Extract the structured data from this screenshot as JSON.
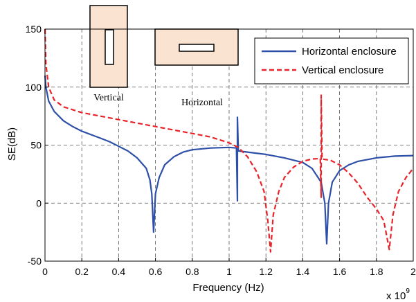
{
  "chart_data": {
    "type": "line",
    "title": "",
    "xlabel": "Frequency (Hz)",
    "ylabel": "SE(dB)",
    "x_multiplier_label": "x 10",
    "x_multiplier_exponent": "9",
    "xlim": [
      0,
      2
    ],
    "ylim": [
      -50,
      150
    ],
    "xticks": [
      0,
      0.2,
      0.4,
      0.6,
      0.8,
      1,
      1.2,
      1.4,
      1.6,
      1.8,
      2
    ],
    "xtick_labels": [
      "0",
      "0.2",
      "0.4",
      "0.6",
      "0.8",
      "1",
      "1.2",
      "1.4",
      "1.6",
      "1.8",
      "2"
    ],
    "yticks": [
      -50,
      0,
      50,
      100,
      150
    ],
    "ytick_labels": [
      "-50",
      "0",
      "50",
      "100",
      "150"
    ],
    "grid": true,
    "legend_position": "top-right",
    "series": [
      {
        "name": "Horizontal enclosure",
        "color": "#2e4fa8",
        "style": "solid",
        "points": [
          [
            0,
            110
          ],
          [
            0.005,
            100
          ],
          [
            0.02,
            88
          ],
          [
            0.05,
            79
          ],
          [
            0.1,
            71
          ],
          [
            0.15,
            66
          ],
          [
            0.2,
            62
          ],
          [
            0.25,
            59
          ],
          [
            0.3,
            56
          ],
          [
            0.35,
            53
          ],
          [
            0.4,
            49
          ],
          [
            0.45,
            45
          ],
          [
            0.5,
            39
          ],
          [
            0.55,
            30
          ],
          [
            0.57,
            20
          ],
          [
            0.58,
            8
          ],
          [
            0.59,
            -25
          ],
          [
            0.6,
            8
          ],
          [
            0.62,
            22
          ],
          [
            0.65,
            33
          ],
          [
            0.7,
            40
          ],
          [
            0.75,
            44
          ],
          [
            0.8,
            46
          ],
          [
            0.9,
            47.5
          ],
          [
            1.0,
            48
          ],
          [
            1.04,
            47.5
          ],
          [
            1.045,
            2
          ],
          [
            1.045,
            74
          ],
          [
            1.05,
            45
          ],
          [
            1.1,
            44
          ],
          [
            1.2,
            42
          ],
          [
            1.3,
            39
          ],
          [
            1.4,
            35
          ],
          [
            1.45,
            30
          ],
          [
            1.5,
            18
          ],
          [
            1.52,
            0
          ],
          [
            1.53,
            -35
          ],
          [
            1.54,
            0
          ],
          [
            1.56,
            18
          ],
          [
            1.6,
            28
          ],
          [
            1.65,
            33
          ],
          [
            1.7,
            36
          ],
          [
            1.8,
            39
          ],
          [
            1.9,
            40.5
          ],
          [
            2.0,
            41
          ]
        ]
      },
      {
        "name": "Vertical enclosure",
        "color": "#e8232a",
        "style": "dashed",
        "points": [
          [
            0,
            150
          ],
          [
            0.005,
            120
          ],
          [
            0.02,
            100
          ],
          [
            0.05,
            89
          ],
          [
            0.1,
            83
          ],
          [
            0.2,
            78
          ],
          [
            0.3,
            75
          ],
          [
            0.4,
            72
          ],
          [
            0.5,
            69
          ],
          [
            0.6,
            66
          ],
          [
            0.7,
            63
          ],
          [
            0.8,
            60
          ],
          [
            0.9,
            57
          ],
          [
            1.0,
            52
          ],
          [
            1.05,
            48
          ],
          [
            1.1,
            40
          ],
          [
            1.15,
            27
          ],
          [
            1.19,
            10
          ],
          [
            1.21,
            -15
          ],
          [
            1.225,
            -42
          ],
          [
            1.24,
            -10
          ],
          [
            1.27,
            10
          ],
          [
            1.3,
            22
          ],
          [
            1.35,
            31
          ],
          [
            1.4,
            36
          ],
          [
            1.45,
            38
          ],
          [
            1.495,
            38.5
          ],
          [
            1.5,
            5
          ],
          [
            1.5,
            93
          ],
          [
            1.505,
            38
          ],
          [
            1.55,
            37
          ],
          [
            1.6,
            33
          ],
          [
            1.65,
            26
          ],
          [
            1.7,
            17
          ],
          [
            1.75,
            5
          ],
          [
            1.8,
            -5
          ],
          [
            1.84,
            -15
          ],
          [
            1.87,
            -40
          ],
          [
            1.89,
            -10
          ],
          [
            1.92,
            10
          ],
          [
            1.96,
            22
          ],
          [
            2.0,
            30
          ]
        ]
      }
    ],
    "insets": [
      {
        "label": "Vertical",
        "orientation": "vertical"
      },
      {
        "label": "Horizontal",
        "orientation": "horizontal"
      }
    ]
  }
}
